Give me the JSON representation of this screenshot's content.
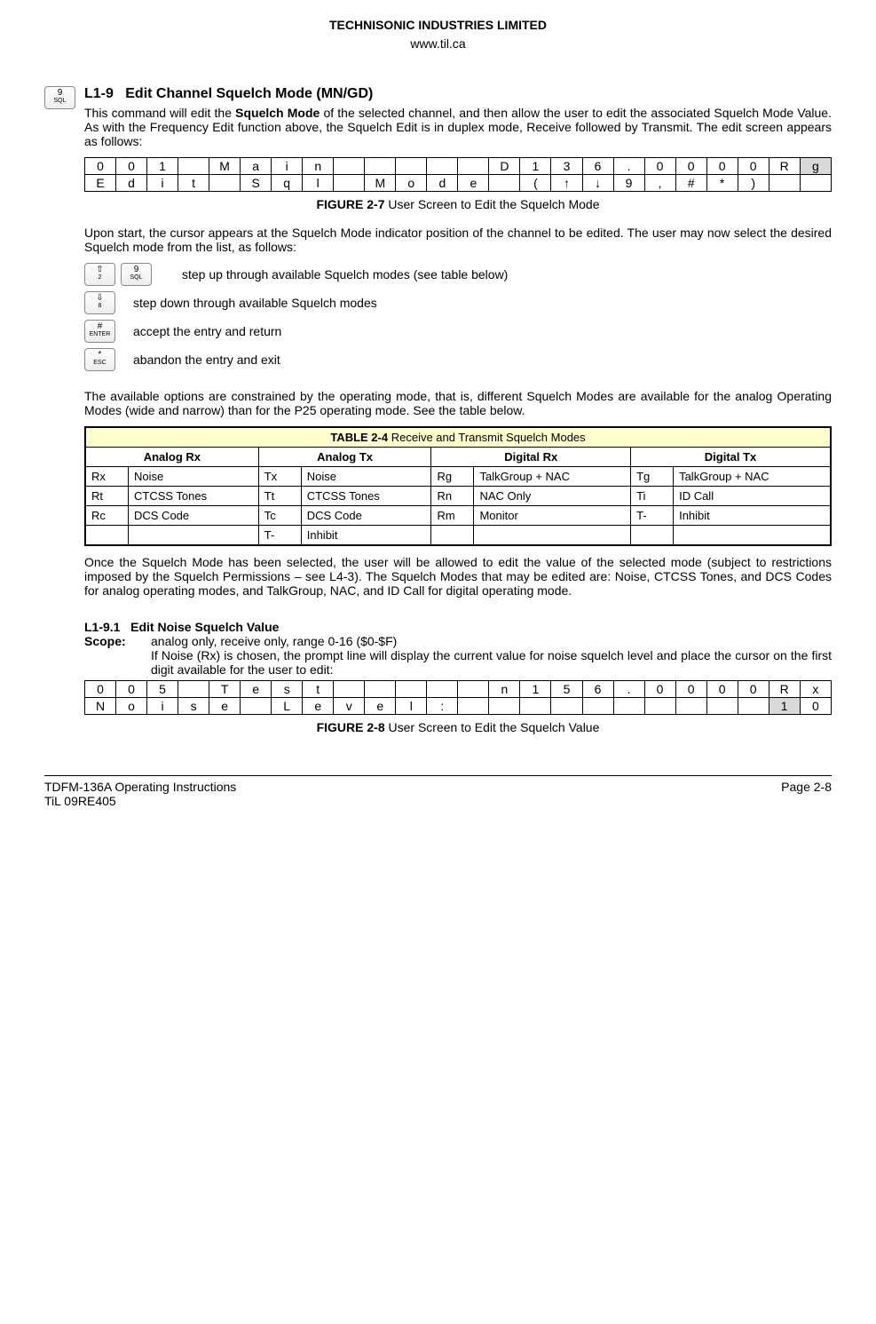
{
  "header": {
    "company": "TECHNISONIC INDUSTRIES LIMITED",
    "url": "www.til.ca"
  },
  "sec1": {
    "key_top": "9",
    "key_bot": "SQL",
    "heading_prefix": "L1-9",
    "heading": "Edit Channel Squelch Mode (MN/GD)",
    "para1": "This command will edit the Squelch Mode of the selected channel, and then allow the user to edit the associated Squelch Mode Value. As with the Frequency Edit function above, the Squelch Edit is in duplex mode, Receive followed by Transmit. The edit screen appears as follows:",
    "bold1": "Squelch Mode"
  },
  "lcd1": {
    "row1": [
      "0",
      "0",
      "1",
      "",
      "M",
      "a",
      "i",
      "n",
      "",
      "",
      "",
      "",
      "",
      "D",
      "1",
      "3",
      "6",
      ".",
      "0",
      "0",
      "0",
      "0",
      "R",
      "g"
    ],
    "row1_shaded": [
      false,
      false,
      false,
      false,
      false,
      false,
      false,
      false,
      false,
      false,
      false,
      false,
      false,
      false,
      false,
      false,
      false,
      false,
      false,
      false,
      false,
      false,
      false,
      true
    ],
    "row2": [
      "E",
      "d",
      "i",
      "t",
      "",
      "S",
      "q",
      "l",
      "",
      "M",
      "o",
      "d",
      "e",
      "",
      "(",
      "↑",
      "↓",
      "9",
      ",",
      "#",
      "*",
      ")",
      "",
      ""
    ],
    "row2_t_small": true
  },
  "fig1_caption_bold": "FIGURE 2-7",
  "fig1_caption_text": "User Screen to Edit the Squelch Mode",
  "para2": "Upon start, the cursor appears at the Squelch Mode indicator position of the channel to be edited. The user may now select the desired Squelch mode from the list, as follows:",
  "keys": {
    "k1a_top": "2",
    "k1a_glyph": "⇧",
    "k1b_top": "9",
    "k1b_bot": "SQL",
    "k1_text": "step up through available Squelch modes (see table below)",
    "k2_top": "8",
    "k2_glyph": "⇩",
    "k2_text": "step down through available Squelch modes",
    "k3_top": "#",
    "k3_bot": "ENTER",
    "k3_text": "accept the entry and return",
    "k4_top": "*",
    "k4_bot": "ESC",
    "k4_text": "abandon the entry and exit"
  },
  "para3": "The available options are constrained by the operating mode, that is, different Squelch Modes are available for the analog Operating Modes (wide and narrow) than for the P25 operating mode. See the table below.",
  "table": {
    "title_bold": "TABLE 2-4",
    "title_text": "Receive and Transmit Squelch Modes",
    "headers": [
      "Analog Rx",
      "Analog Tx",
      "Digital Rx",
      "Digital Tx"
    ],
    "rows": [
      [
        "Rx",
        "Noise",
        "Tx",
        "Noise",
        "Rg",
        "TalkGroup + NAC",
        "Tg",
        "TalkGroup + NAC"
      ],
      [
        "Rt",
        "CTCSS Tones",
        "Tt",
        "CTCSS Tones",
        "Rn",
        "NAC Only",
        "Ti",
        "ID Call"
      ],
      [
        "Rc",
        "DCS Code",
        "Tc",
        "DCS Code",
        "Rm",
        "Monitor",
        "T-",
        "Inhibit"
      ],
      [
        "",
        "",
        "T-",
        "Inhibit",
        "",
        "",
        "",
        ""
      ]
    ]
  },
  "para4": "Once the Squelch Mode has been selected, the user will be allowed to edit the value of the selected mode (subject to restrictions imposed by the Squelch Permissions – see L4-3). The Squelch Modes that may be edited are: Noise, CTCSS Tones, and DCS Codes for analog operating modes, and TalkGroup, NAC, and ID Call for digital operating mode.",
  "sec2": {
    "heading_prefix": "L1-9.1",
    "heading": "Edit Noise Squelch Value",
    "scope_label": "Scope:",
    "scope_text": "analog only, receive only, range 0-16 ($0-$F)",
    "scope_para": "If Noise (Rx) is chosen, the prompt line will display the current value for noise squelch level and place the cursor on the first digit available for the user to edit:"
  },
  "lcd2": {
    "row1": [
      "0",
      "0",
      "5",
      "",
      "T",
      "e",
      "s",
      "t",
      "",
      "",
      "",
      "",
      "",
      "n",
      "1",
      "5",
      "6",
      ".",
      "0",
      "0",
      "0",
      "0",
      "R",
      "x"
    ],
    "row2": [
      "N",
      "o",
      "i",
      "s",
      "e",
      "",
      "L",
      "e",
      "v",
      "e",
      "l",
      ":",
      "",
      "",
      "",
      "",
      "",
      "",
      "",
      "",
      "",
      "",
      "1",
      "0"
    ],
    "row2_shaded_idx": 22
  },
  "fig2_caption_bold": "FIGURE 2-8",
  "fig2_caption_text": "User Screen to Edit the Squelch Value",
  "footer": {
    "left1": "TDFM-136A    Operating Instructions",
    "left2": "TiL 09RE405",
    "right": "Page 2-8"
  }
}
